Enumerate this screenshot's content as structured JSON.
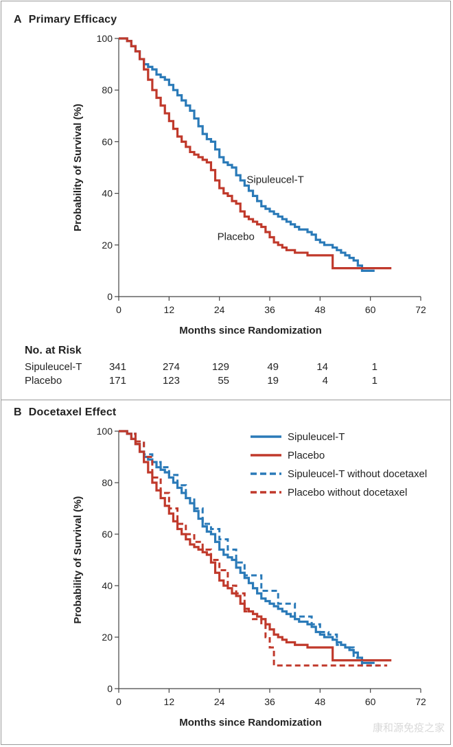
{
  "panels": {
    "a": {
      "letter": "A",
      "title": "Primary Efficacy"
    },
    "b": {
      "letter": "B",
      "title": "Docetaxel Effect"
    }
  },
  "risk_table": {
    "title": "No. at Risk",
    "rows": [
      {
        "label": "Sipuleucel-T",
        "values": [
          "341",
          "274",
          "129",
          "49",
          "14",
          "1"
        ]
      },
      {
        "label": "Placebo",
        "values": [
          "171",
          "123",
          "55",
          "19",
          "4",
          "1"
        ]
      }
    ]
  },
  "watermark": "康和源免疫之家",
  "colors": {
    "blue": "#2a7ab8",
    "red": "#c0392b",
    "axis": "#444444"
  },
  "chart_data": [
    {
      "type": "line",
      "title": "Primary Efficacy",
      "xlabel": "Months since Randomization",
      "ylabel": "Probability of Survival (%)",
      "xlim": [
        0,
        72
      ],
      "ylim": [
        0,
        100
      ],
      "xticks": [
        0,
        12,
        24,
        36,
        48,
        60,
        72
      ],
      "yticks": [
        0,
        20,
        40,
        60,
        80,
        100
      ],
      "annotations": [
        {
          "text": "Sipuleucel-T",
          "x": 30.5,
          "y": 44
        },
        {
          "text": "Placebo",
          "x": 23.5,
          "y": 22
        }
      ],
      "series": [
        {
          "name": "Sipuleucel-T",
          "color": "#2a7ab8",
          "dash": false,
          "x": [
            0,
            1,
            2,
            3,
            4,
            5,
            6,
            7,
            8,
            9,
            10,
            11,
            12,
            13,
            14,
            15,
            16,
            17,
            18,
            19,
            20,
            21,
            22,
            23,
            24,
            25,
            26,
            27,
            28,
            29,
            30,
            31,
            32,
            33,
            34,
            35,
            36,
            37,
            38,
            39,
            40,
            41,
            42,
            43,
            44,
            45,
            46,
            47,
            48,
            49,
            50,
            51,
            52,
            53,
            54,
            55,
            56,
            57,
            58,
            59,
            60,
            61
          ],
          "y": [
            100,
            100,
            99,
            97,
            95,
            92,
            90,
            89,
            88,
            86,
            85,
            84,
            82,
            80,
            78,
            76,
            74,
            72,
            69,
            66,
            63,
            61,
            60,
            57,
            54,
            52,
            51,
            50,
            47,
            45,
            43,
            41,
            39,
            37,
            35,
            34,
            33,
            32,
            31,
            30,
            29,
            28,
            27,
            26,
            26,
            25,
            24,
            22,
            21,
            20,
            20,
            19,
            18,
            17,
            16,
            15,
            14,
            12,
            10,
            10,
            10,
            10
          ]
        },
        {
          "name": "Placebo",
          "color": "#c0392b",
          "dash": false,
          "x": [
            0,
            1,
            2,
            3,
            4,
            5,
            6,
            7,
            8,
            9,
            10,
            11,
            12,
            13,
            14,
            15,
            16,
            17,
            18,
            19,
            20,
            21,
            22,
            23,
            24,
            25,
            26,
            27,
            28,
            29,
            30,
            31,
            32,
            33,
            34,
            35,
            36,
            37,
            38,
            39,
            40,
            41,
            42,
            43,
            44,
            45,
            46,
            47,
            48,
            49,
            50,
            51,
            52,
            53,
            54,
            55,
            56,
            57,
            58,
            59,
            60,
            61,
            62,
            63,
            64,
            65
          ],
          "y": [
            100,
            100,
            99,
            97,
            95,
            92,
            88,
            84,
            80,
            77,
            74,
            71,
            68,
            65,
            62,
            60,
            58,
            56,
            55,
            54,
            53,
            52,
            49,
            45,
            42,
            40,
            39,
            37,
            36,
            33,
            31,
            30,
            29,
            28,
            27,
            25,
            23,
            21,
            20,
            19,
            18,
            18,
            17,
            17,
            17,
            16,
            16,
            16,
            16,
            16,
            16,
            11,
            11,
            11,
            11,
            11,
            11,
            11,
            11,
            11,
            11,
            11,
            11,
            11,
            11,
            11
          ]
        }
      ]
    },
    {
      "type": "line",
      "title": "Docetaxel Effect",
      "xlabel": "Months since Randomization",
      "ylabel": "Probability of Survival (%)",
      "xlim": [
        0,
        72
      ],
      "ylim": [
        0,
        100
      ],
      "xticks": [
        0,
        12,
        24,
        36,
        48,
        60,
        72
      ],
      "yticks": [
        0,
        20,
        40,
        60,
        80,
        100
      ],
      "legend": "top-right",
      "series": [
        {
          "name": "Sipuleucel-T",
          "color": "#2a7ab8",
          "dash": false,
          "x": [
            0,
            1,
            2,
            3,
            4,
            5,
            6,
            7,
            8,
            9,
            10,
            11,
            12,
            13,
            14,
            15,
            16,
            17,
            18,
            19,
            20,
            21,
            22,
            23,
            24,
            25,
            26,
            27,
            28,
            29,
            30,
            31,
            32,
            33,
            34,
            35,
            36,
            37,
            38,
            39,
            40,
            41,
            42,
            43,
            44,
            45,
            46,
            47,
            48,
            49,
            50,
            51,
            52,
            53,
            54,
            55,
            56,
            57,
            58,
            59,
            60,
            61
          ],
          "y": [
            100,
            100,
            99,
            97,
            95,
            92,
            90,
            89,
            88,
            86,
            85,
            84,
            82,
            80,
            78,
            76,
            74,
            72,
            69,
            66,
            63,
            61,
            60,
            57,
            54,
            52,
            51,
            50,
            47,
            45,
            43,
            41,
            39,
            37,
            35,
            34,
            33,
            32,
            31,
            30,
            29,
            28,
            27,
            26,
            26,
            25,
            24,
            22,
            21,
            20,
            20,
            19,
            18,
            17,
            16,
            15,
            14,
            12,
            10,
            10,
            10,
            10
          ]
        },
        {
          "name": "Placebo",
          "color": "#c0392b",
          "dash": false,
          "x": [
            0,
            1,
            2,
            3,
            4,
            5,
            6,
            7,
            8,
            9,
            10,
            11,
            12,
            13,
            14,
            15,
            16,
            17,
            18,
            19,
            20,
            21,
            22,
            23,
            24,
            25,
            26,
            27,
            28,
            29,
            30,
            31,
            32,
            33,
            34,
            35,
            36,
            37,
            38,
            39,
            40,
            41,
            42,
            43,
            44,
            45,
            46,
            47,
            48,
            49,
            50,
            51,
            52,
            53,
            54,
            55,
            56,
            57,
            58,
            59,
            60,
            61,
            62,
            63,
            64,
            65
          ],
          "y": [
            100,
            100,
            99,
            97,
            95,
            92,
            88,
            84,
            80,
            77,
            74,
            71,
            68,
            65,
            62,
            60,
            58,
            56,
            55,
            54,
            53,
            52,
            49,
            45,
            42,
            40,
            39,
            37,
            36,
            33,
            31,
            30,
            29,
            28,
            27,
            25,
            23,
            21,
            20,
            19,
            18,
            18,
            17,
            17,
            17,
            16,
            16,
            16,
            16,
            16,
            16,
            11,
            11,
            11,
            11,
            11,
            11,
            11,
            11,
            11,
            11,
            11,
            11,
            11,
            11,
            11
          ]
        },
        {
          "name": "Sipuleucel-T without docetaxel",
          "color": "#2a7ab8",
          "dash": true,
          "x": [
            0,
            2,
            4,
            6,
            8,
            10,
            12,
            14,
            16,
            18,
            20,
            22,
            24,
            26,
            28,
            30,
            32,
            34,
            36,
            38,
            40,
            42,
            44,
            46,
            48,
            50,
            52,
            54,
            56,
            58,
            60,
            62
          ],
          "y": [
            100,
            99,
            96,
            91,
            88,
            86,
            83,
            79,
            74,
            70,
            64,
            62,
            58,
            54,
            49,
            44,
            44,
            38,
            38,
            33,
            33,
            28,
            28,
            25,
            22,
            21,
            17,
            16,
            12,
            9,
            9,
            9
          ]
        },
        {
          "name": "Placebo without docetaxel",
          "color": "#c0392b",
          "dash": true,
          "x": [
            0,
            2,
            4,
            6,
            8,
            10,
            12,
            14,
            16,
            18,
            20,
            22,
            24,
            26,
            28,
            30,
            32,
            34,
            35,
            36,
            37,
            38,
            40,
            44,
            48,
            52,
            56,
            60,
            64
          ],
          "y": [
            100,
            99,
            96,
            90,
            82,
            76,
            70,
            64,
            60,
            57,
            54,
            50,
            46,
            40,
            37,
            30,
            27,
            25,
            20,
            16,
            9,
            9,
            9,
            9,
            9,
            9,
            9,
            9,
            9
          ]
        }
      ]
    }
  ]
}
